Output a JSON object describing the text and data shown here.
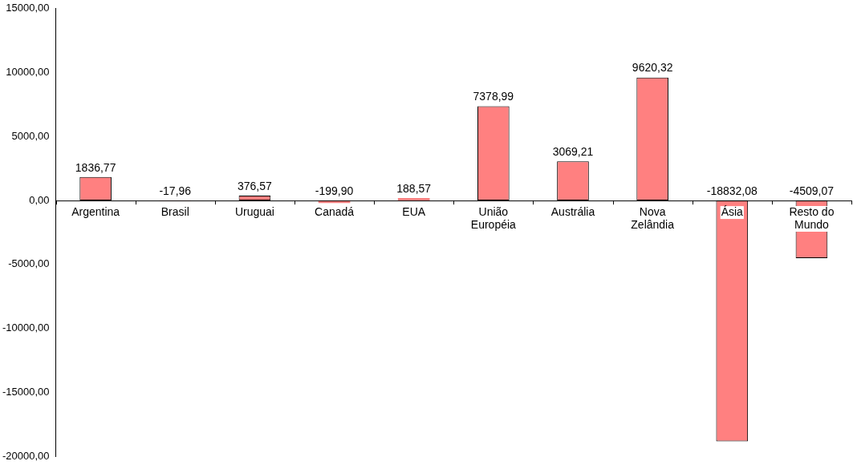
{
  "chart_data": {
    "type": "bar",
    "categories": [
      "Argentina",
      "Brasil",
      "Uruguai",
      "Canadá",
      "EUA",
      "União Européia",
      "Austrália",
      "Nova Zelândia",
      "Ásia",
      "Resto do Mundo"
    ],
    "series": [
      {
        "color": "#ff8080",
        "values": [
          1836.77,
          -17.96,
          376.57,
          -199.9,
          188.57,
          7378.99,
          3069.21,
          9620.32,
          -18832.08,
          -4509.07
        ],
        "value_labels": [
          "1836,77",
          "-17,96",
          "376,57",
          "-199,90",
          "188,57",
          "7378,99",
          "3069,21",
          "9620,32",
          "-18832,08",
          "-4509,07"
        ]
      }
    ],
    "ylim": [
      -20000,
      15000
    ],
    "yticks": [
      {
        "value": -20000,
        "label": "-20000,00"
      },
      {
        "value": -15000,
        "label": "-15000,00"
      },
      {
        "value": -10000,
        "label": "-10000,00"
      },
      {
        "value": -5000,
        "label": "-5000,00"
      },
      {
        "value": 0,
        "label": "0,00"
      },
      {
        "value": 5000,
        "label": "5000,00"
      },
      {
        "value": 10000,
        "label": "10000,00"
      },
      {
        "value": 15000,
        "label": "15000,00"
      }
    ],
    "grid": false,
    "legend": false
  }
}
